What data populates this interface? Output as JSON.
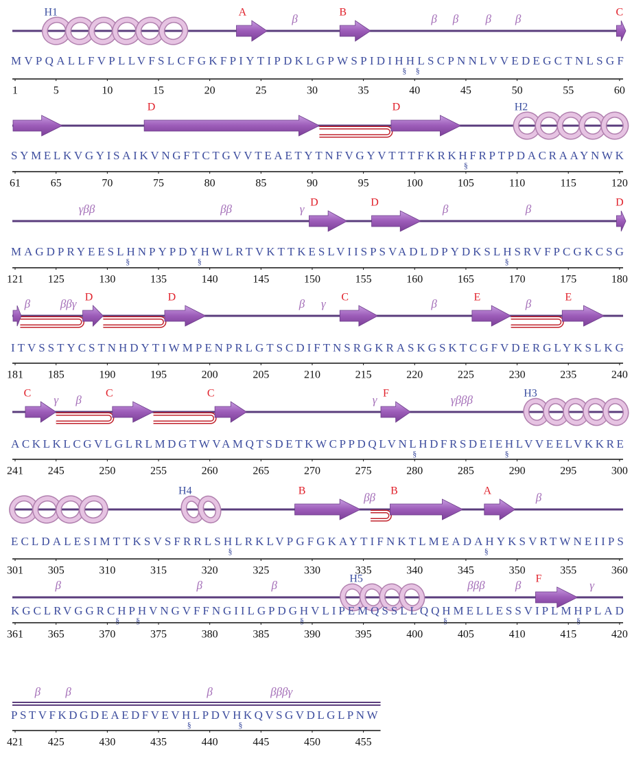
{
  "rows": [
    {
      "labels": [
        "H1",
        "A",
        "β",
        "B",
        "β",
        "β",
        "β",
        "β",
        "C"
      ],
      "sequence": "MVPQALLFVPLLVFSLCFGKFPIYTIPDKLGPWSPIDIHHLSCPNNLVVEDEGCTNLSGF",
      "marks": [
        "§",
        "§"
      ],
      "numbers": [
        1,
        5,
        10,
        15,
        20,
        25,
        30,
        35,
        40,
        45,
        50,
        55,
        60
      ]
    },
    {
      "labels": [
        "D",
        "D",
        "H2"
      ],
      "sequence": "SYMELKVGYISAIKVNGFTCTGVVTEAETYTNFVGYVTTTFKRKHFRPTPDACRAAYNWK",
      "marks": [
        "§"
      ],
      "numbers": [
        61,
        65,
        70,
        75,
        80,
        85,
        90,
        95,
        100,
        105,
        110,
        115,
        120
      ]
    },
    {
      "labels": [
        "γββ",
        "ββ",
        "γ",
        "D",
        "D",
        "β",
        "β",
        "D"
      ],
      "sequence": "MAGDPRYEESLHNPYPDYHWLRTVKTTKESLVIISPSVADLDPYDKSLHSRVFPCGKCSG",
      "marks": [
        "§",
        "§",
        "§"
      ],
      "numbers": [
        121,
        125,
        130,
        135,
        140,
        145,
        150,
        155,
        160,
        165,
        170,
        175,
        180
      ]
    },
    {
      "labels": [
        "β",
        "ββγ",
        "D",
        "D",
        "β",
        "γ",
        "C",
        "β",
        "E",
        "β",
        "E"
      ],
      "sequence": "ITVSSTYCSTNHDYTIWMPENPRLGTSCDIFTNSRGKRASKGSKTCGFVDERGLYKSLKG",
      "marks": [],
      "numbers": [
        181,
        185,
        190,
        195,
        200,
        205,
        210,
        215,
        220,
        225,
        230,
        235,
        240
      ]
    },
    {
      "labels": [
        "C",
        "γ",
        "β",
        "C",
        "C",
        "γ",
        "F",
        "γβββ",
        "H3"
      ],
      "sequence": "ACKLKLCGVLGLRLMDGTWVAMQTSDETKWCPPDQLVNLHDFRSDEIEHLVVEELVKKRE",
      "marks": [
        "§",
        "§"
      ],
      "numbers": [
        241,
        245,
        250,
        255,
        260,
        265,
        270,
        275,
        280,
        285,
        290,
        295,
        300
      ]
    },
    {
      "labels": [
        "H4",
        "B",
        "ββ",
        "B",
        "A",
        "β"
      ],
      "sequence": "ECLDALESIMTTKSVSFRRLSHLRKLVPGFGKAYTIFNKTLMEADAHYKSVRTWNEIIPS",
      "marks": [
        "§",
        "§"
      ],
      "numbers": [
        301,
        305,
        310,
        315,
        320,
        325,
        330,
        335,
        340,
        345,
        350,
        355,
        360
      ]
    },
    {
      "labels": [
        "β",
        "β",
        "β",
        "H5",
        "βββ",
        "β",
        "F",
        "γ"
      ],
      "sequence": "KGCLRVGGRCHPHVNGVFFNGIILGPDGHVLIPEMQSSLLQQHMELLESSVIPLMHPLAD",
      "marks": [
        "§",
        "§",
        "§",
        "§",
        "§"
      ],
      "numbers": [
        361,
        365,
        370,
        375,
        380,
        385,
        390,
        395,
        400,
        405,
        410,
        415,
        420
      ]
    },
    {
      "labels": [
        "β",
        "β",
        "β",
        "βββγ"
      ],
      "sequence": "PSTVFKDGDEAEDFVEVHLPDVHKQVSGVDLGLPNW",
      "marks": [
        "§",
        "§"
      ],
      "numbers": [
        421,
        425,
        430,
        435,
        440,
        445,
        450,
        455
      ]
    }
  ]
}
